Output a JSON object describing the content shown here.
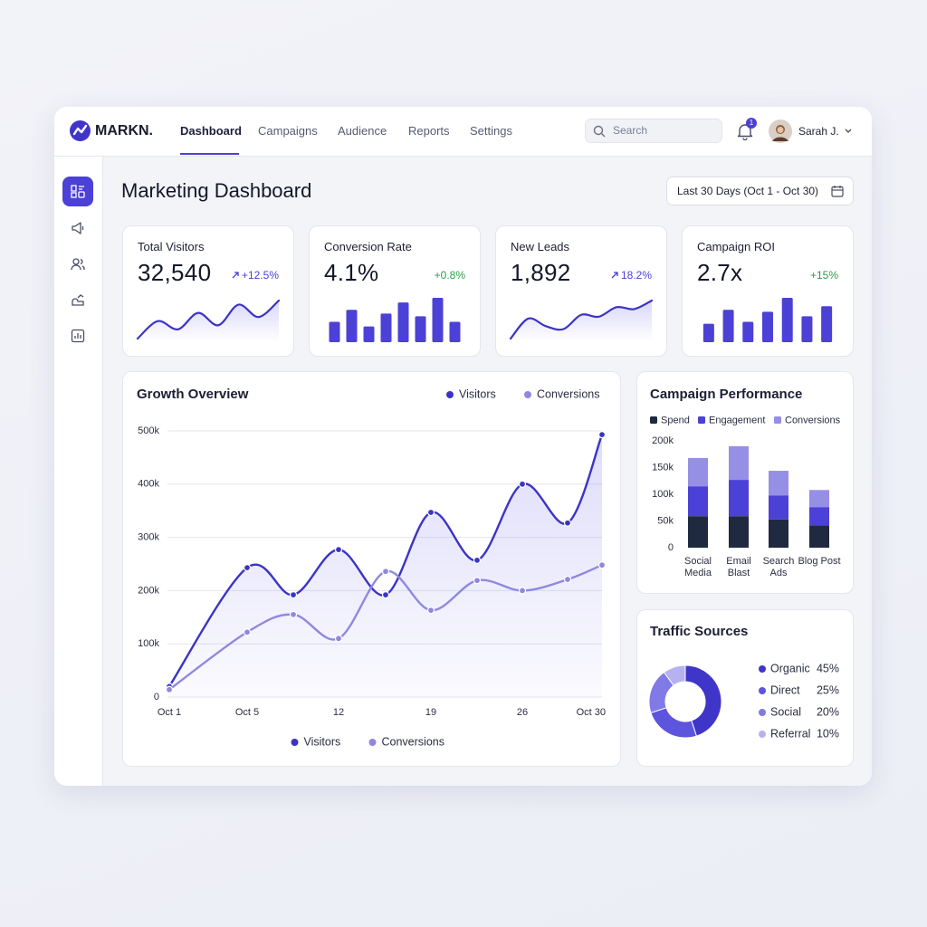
{
  "brand": "MARKN.",
  "nav": [
    "Dashboard",
    "Campaigns",
    "Audience",
    "Reports",
    "Settings"
  ],
  "search_placeholder": "Search",
  "notifications": 1,
  "user": "Sarah J.",
  "page_title": "Marketing Dashboard",
  "date_range": "Last 30 Days (Oct 1 - Oct 30)",
  "kpis": [
    {
      "label": "Total Visitors",
      "value": "32,540",
      "change": "+12.5%",
      "spark": {
        "type": "line",
        "values": [
          5,
          22,
          14,
          30,
          18,
          38,
          26,
          42
        ]
      }
    },
    {
      "label": "Conversion Rate",
      "value": "4.1%",
      "change": "+0.8%",
      "spark": {
        "type": "bar",
        "values": [
          22,
          35,
          17,
          31,
          43,
          28,
          48,
          22
        ]
      }
    },
    {
      "label": "New Leads",
      "value": "1,892",
      "change": "18.2%",
      "spark": {
        "type": "line",
        "values": [
          5,
          26,
          18,
          15,
          30,
          28,
          38,
          36,
          45
        ]
      }
    },
    {
      "label": "Campaign ROI",
      "value": "2.7x",
      "change": "+15%",
      "spark": {
        "type": "bar",
        "values": [
          20,
          35,
          22,
          33,
          48,
          28,
          39
        ]
      }
    }
  ],
  "chart_data": [
    {
      "type": "line",
      "title": "Growth Overview",
      "categories": [
        "Oct 1",
        "Oct 5",
        null,
        "12",
        null,
        "19",
        null,
        "26",
        null,
        "Oct 30"
      ],
      "series": [
        {
          "name": "Visitors",
          "color": "#3b34c4",
          "values": [
            20000,
            243000,
            192000,
            277000,
            192000,
            347000,
            257000,
            400000,
            327000,
            493000
          ]
        },
        {
          "name": "Conversions",
          "color": "#8f88e0",
          "values": [
            14000,
            122000,
            155000,
            110000,
            236000,
            163000,
            219000,
            200000,
            221000,
            248000
          ]
        }
      ],
      "ylim": [
        0,
        500000
      ],
      "yticks": [
        0,
        {
          "value": 100000,
          "label": "100k"
        },
        {
          "value": 200000,
          "label": "200k"
        },
        {
          "value": 300000,
          "label": "300k"
        },
        {
          "value": 400000,
          "label": "400k"
        },
        {
          "value": 500000,
          "label": "500k"
        }
      ],
      "grid": true,
      "legend": [
        "top-right",
        "bottom"
      ]
    },
    {
      "type": "bar",
      "stacked": true,
      "title": "Campaign Performance",
      "categories": [
        "Social Media",
        "Email Blast",
        "Search Ads",
        "Blog Post"
      ],
      "series": [
        {
          "name": "Spend",
          "color": "#1f2940",
          "values": [
            59000,
            59000,
            53000,
            42000
          ]
        },
        {
          "name": "Engagement",
          "color": "#4b41d6",
          "values": [
            56000,
            68000,
            45000,
            34000
          ]
        },
        {
          "name": "Conversions",
          "color": "#968fe6",
          "values": [
            53000,
            63000,
            46000,
            32000
          ]
        }
      ],
      "ylim": [
        0,
        200000
      ],
      "yticks": [
        0,
        {
          "value": 50000,
          "label": "50k"
        },
        {
          "value": 100000,
          "label": "100k"
        },
        {
          "value": 150000,
          "label": "150k"
        },
        {
          "value": 200000,
          "label": "200k"
        }
      ],
      "grid": false,
      "legend": "top-left"
    },
    {
      "type": "pie",
      "donut": true,
      "title": "Traffic Sources",
      "categories": [
        "Organic",
        "Direct",
        "Social",
        "Referral"
      ],
      "values": [
        45,
        25,
        20,
        10
      ],
      "value_labels": [
        "45%",
        "25%",
        "20%",
        "10%"
      ],
      "colors": [
        "#3f35c9",
        "#5d55dd",
        "#8079e6",
        "#b6b2f1"
      ],
      "legend": "right"
    }
  ]
}
